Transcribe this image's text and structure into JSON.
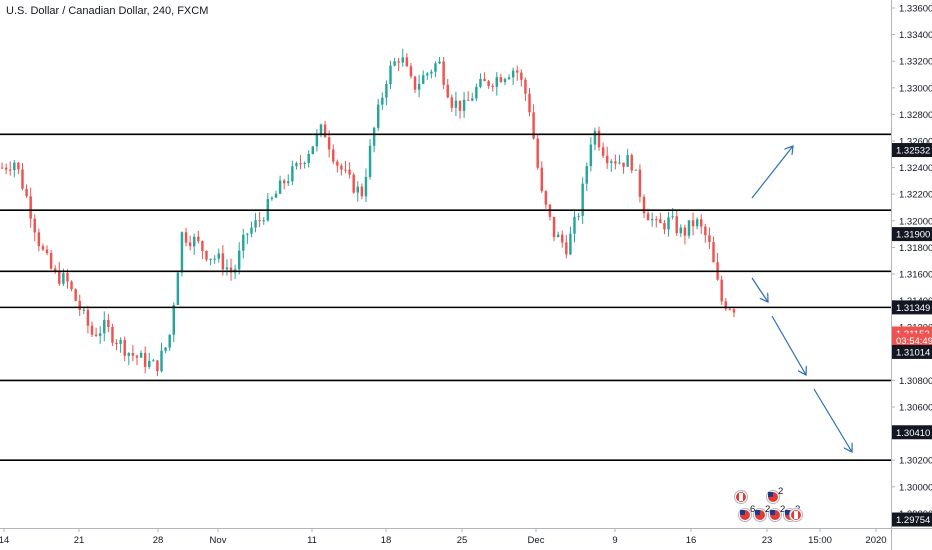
{
  "header": {
    "title": "U.S. Dollar / Canadian Dollar, 240, FXCM"
  },
  "chart_data": {
    "type": "candlestick",
    "symbol": "USDCAD",
    "timeframe": "240",
    "source": "FXCM",
    "ylim": [
      1.2955,
      1.337
    ],
    "y_ticks": [
      "1.33600",
      "1.33400",
      "1.33200",
      "1.33000",
      "1.32800",
      "1.32600",
      "1.32400",
      "1.32200",
      "1.32000",
      "1.31800",
      "1.31600",
      "1.31400",
      "1.31200",
      "1.31000",
      "1.30800",
      "1.30600",
      "1.30400",
      "1.30200",
      "1.30000",
      "1.29800"
    ],
    "x_ticks": [
      "14",
      "21",
      "28",
      "Nov",
      "11",
      "18",
      "25",
      "Dec",
      "9",
      "16",
      "23",
      "15:00",
      "2020"
    ],
    "price_path": [
      [
        "14",
        1.324
      ],
      [
        "15",
        1.3245
      ],
      [
        "17",
        1.3215
      ],
      [
        "18",
        1.318
      ],
      [
        "19",
        1.316
      ],
      [
        "21",
        1.3155
      ],
      [
        "22",
        1.3135
      ],
      [
        "24",
        1.3115
      ],
      [
        "25",
        1.312
      ],
      [
        "26",
        1.311
      ],
      [
        "28",
        1.31
      ],
      [
        "29",
        1.3095
      ],
      [
        "30",
        1.309
      ],
      [
        "31",
        1.311
      ],
      [
        "Nov",
        1.319
      ],
      [
        "1",
        1.3185
      ],
      [
        "2",
        1.3175
      ],
      [
        "4",
        1.317
      ],
      [
        "5",
        1.316
      ],
      [
        "6",
        1.319
      ],
      [
        "7",
        1.32
      ],
      [
        "8",
        1.3215
      ],
      [
        "11",
        1.323
      ],
      [
        "12",
        1.324
      ],
      [
        "13",
        1.3255
      ],
      [
        "14",
        1.327
      ],
      [
        "15",
        1.3245
      ],
      [
        "16",
        1.323
      ],
      [
        "18",
        1.322
      ],
      [
        "19",
        1.327
      ],
      [
        "20",
        1.331
      ],
      [
        "21",
        1.3325
      ],
      [
        "22",
        1.33
      ],
      [
        "24",
        1.331
      ],
      [
        "25",
        1.332
      ],
      [
        "26",
        1.329
      ],
      [
        "27",
        1.3285
      ],
      [
        "28",
        1.33
      ],
      [
        "29",
        1.3305
      ],
      [
        "Dec",
        1.331
      ],
      [
        "2",
        1.3315
      ],
      [
        "3",
        1.329
      ],
      [
        "4",
        1.322
      ],
      [
        "5",
        1.319
      ],
      [
        "6",
        1.318
      ],
      [
        "8",
        1.321
      ],
      [
        "9",
        1.327
      ],
      [
        "10",
        1.325
      ],
      [
        "11",
        1.3245
      ],
      [
        "12",
        1.3245
      ],
      [
        "13",
        1.321
      ],
      [
        "15",
        1.3195
      ],
      [
        "16",
        1.32
      ],
      [
        "17",
        1.319
      ],
      [
        "18",
        1.32
      ],
      [
        "19",
        1.3185
      ],
      [
        "20",
        1.314
      ],
      [
        "21",
        1.3135
      ]
    ],
    "horizontal_lines": [
      1.3265,
      1.3208,
      1.3162,
      1.31349,
      1.308,
      1.302
    ],
    "price_labels": [
      {
        "text": "1.32532",
        "price": 1.32532,
        "style": "dark"
      },
      {
        "text": "1.31900",
        "price": 1.319,
        "style": "dark"
      },
      {
        "text": "1.31349",
        "price": 1.31349,
        "style": "dark"
      },
      {
        "text": "1.31153",
        "price": 1.31153,
        "style": "red"
      },
      {
        "text": "03:54:49",
        "price": 1.311,
        "style": "red"
      },
      {
        "text": "1.31014",
        "price": 1.31014,
        "style": "dark"
      },
      {
        "text": "1.30410",
        "price": 1.3041,
        "style": "dark"
      },
      {
        "text": "1.29754",
        "price": 1.29754,
        "style": "dark"
      }
    ],
    "arrows": [
      {
        "from": [
          752,
          198
        ],
        "to": [
          793,
          146
        ]
      },
      {
        "from": [
          752,
          278
        ],
        "to": [
          768,
          302
        ]
      },
      {
        "from": [
          772,
          316
        ],
        "to": [
          806,
          375
        ]
      },
      {
        "from": [
          814,
          389
        ],
        "to": [
          852,
          452
        ]
      }
    ],
    "events": [
      {
        "flag": "CA",
        "count": ""
      },
      {
        "flag": "US",
        "count": "2"
      },
      {
        "flag": "US",
        "count": "6"
      },
      {
        "flag": "US",
        "count": "2"
      },
      {
        "flag": "US",
        "count": "2"
      },
      {
        "flag": "US",
        "count": "2"
      },
      {
        "flag": "CA",
        "count": ""
      }
    ],
    "colors": {
      "up": "#26a69a",
      "down": "#ef5350",
      "line": "#000000",
      "arrow": "#2a6db5",
      "label_dark": "#131722",
      "label_red": "#ef5350"
    }
  }
}
